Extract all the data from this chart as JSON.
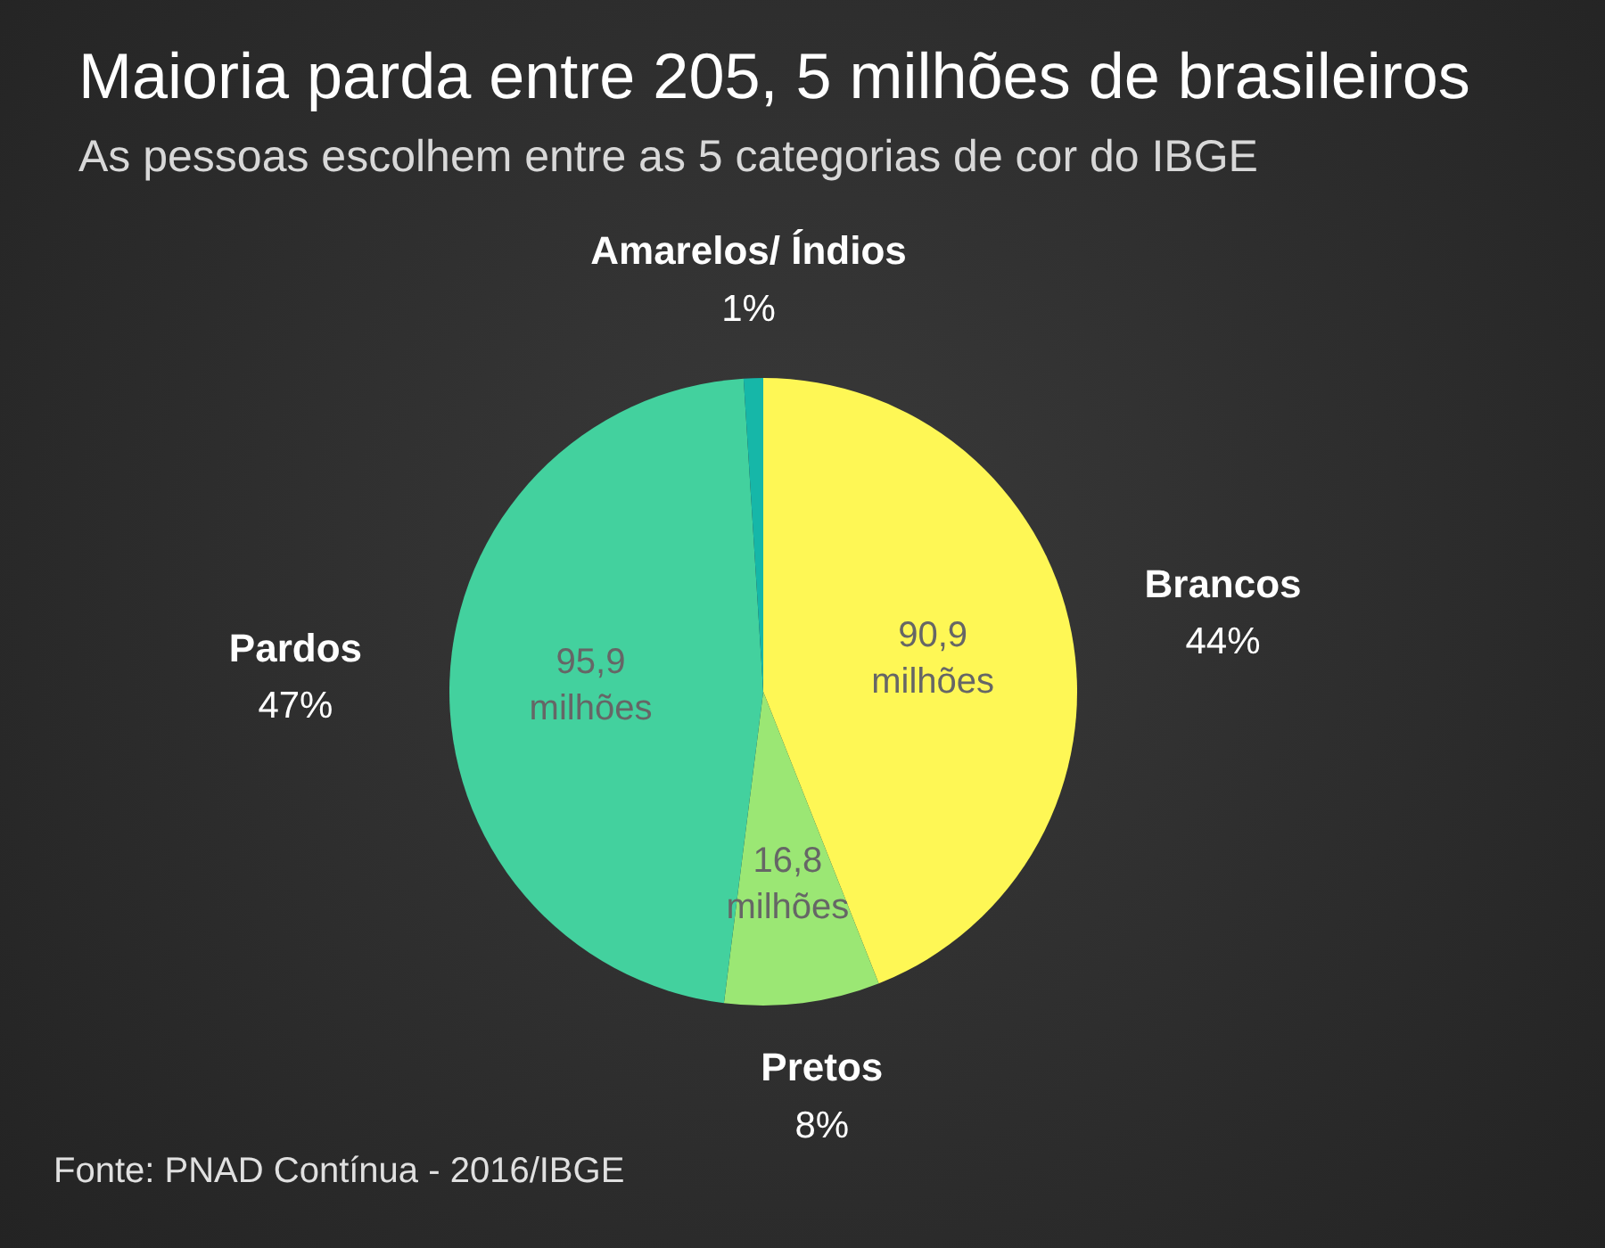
{
  "chart_data": {
    "type": "pie",
    "title": "Maioria parda entre 205, 5 milhões de brasileiros",
    "subtitle": "As pessoas escolhem entre as 5 categorias de cor do IBGE",
    "categories": [
      "Brancos",
      "Pretos",
      "Pardos",
      "Amarelos/ Índios"
    ],
    "values": [
      44,
      8,
      47,
      1
    ],
    "colors": [
      "#fef755",
      "#9be774",
      "#43d19e",
      "#16b7a8"
    ],
    "value_labels": [
      "44%",
      "8%",
      "47%",
      "1%"
    ],
    "legend": false,
    "annotations": [
      "Fonte: PNAD Contínua - 2016/IBGE",
      {
        "text": "90,9 milhões",
        "x": "Brancos"
      },
      {
        "text": "16,8 milhões",
        "x": "Pretos"
      },
      {
        "text": "95,9 milhões",
        "x": "Pardos"
      }
    ]
  }
}
